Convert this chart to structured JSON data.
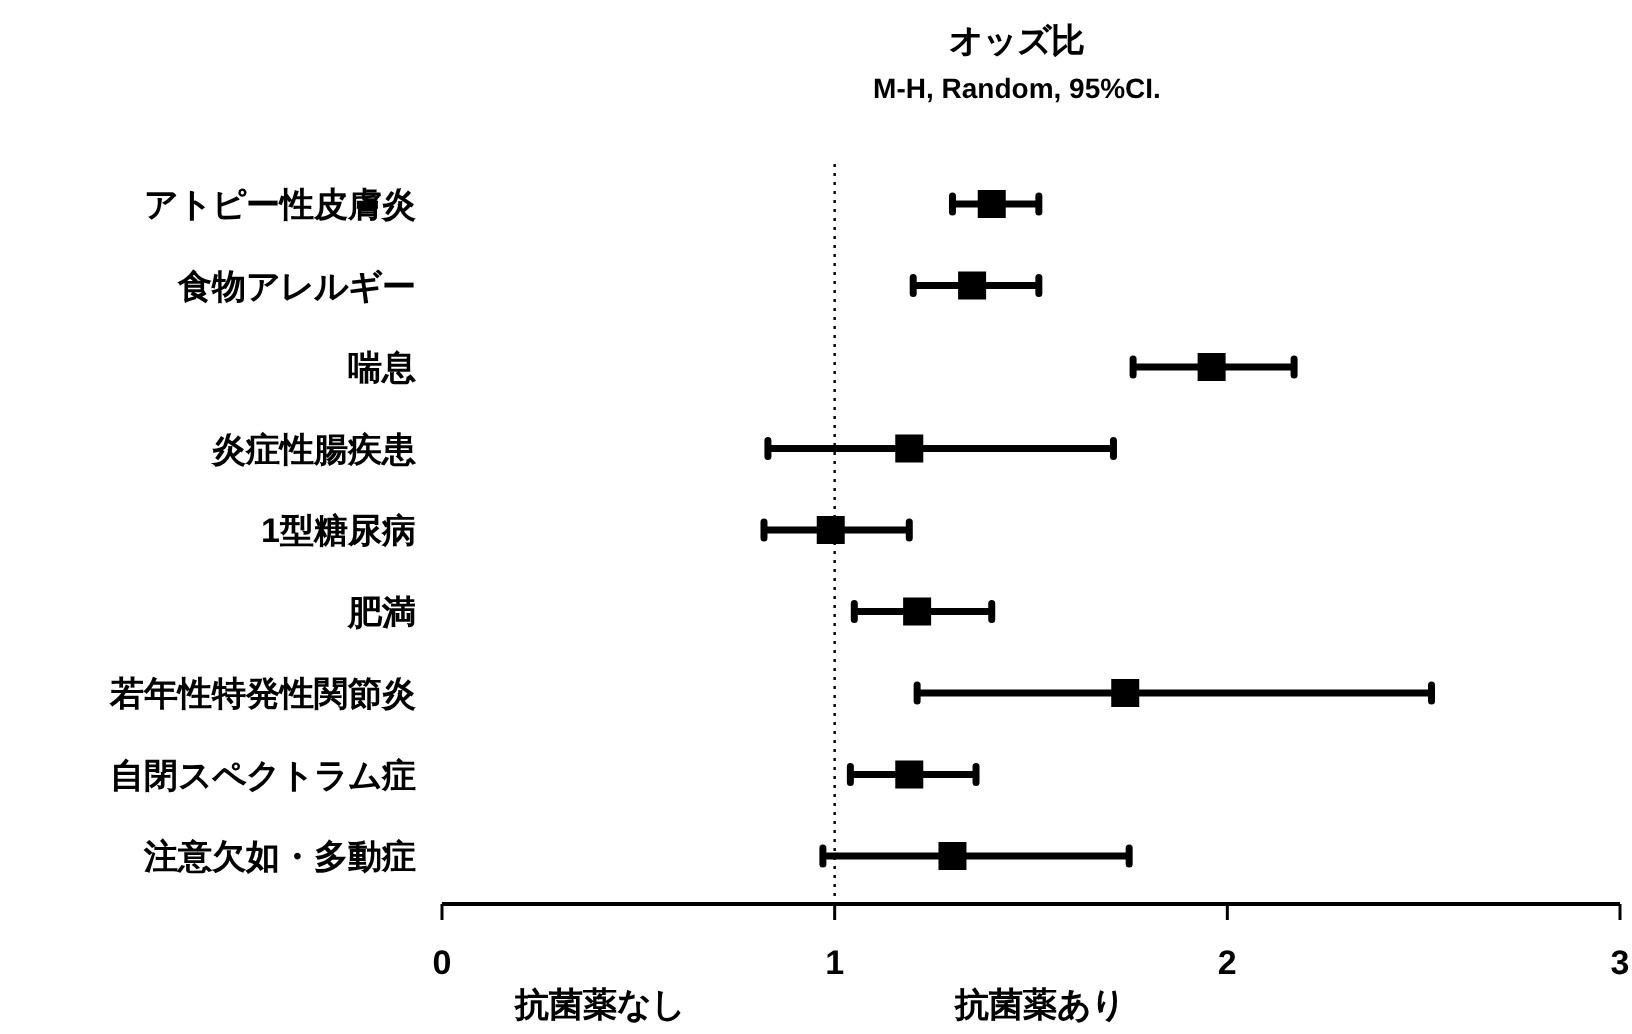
{
  "chart_data": {
    "type": "scatter",
    "orientation": "horizontal",
    "title": "オッズ比",
    "subtitle": "M-H, Random, 95%CI.",
    "categories": [
      "アトピー性皮膚炎",
      "食物アレルギー",
      "喘息",
      "炎症性腸疾患",
      "1型糖尿病",
      "肥満",
      "若年性特発性関節炎",
      "自閉スペクトラム症",
      "注意欠如・多動症"
    ],
    "color": "#000000",
    "marker": "square",
    "values": [
      1.4,
      1.35,
      1.96,
      1.19,
      0.99,
      1.21,
      1.74,
      1.19,
      1.3
    ],
    "errors": [
      [
        1.3,
        1.52
      ],
      [
        1.2,
        1.52
      ],
      [
        1.76,
        2.17
      ],
      [
        0.83,
        1.71
      ],
      [
        0.82,
        1.19
      ],
      [
        1.05,
        1.4
      ],
      [
        1.21,
        2.52
      ],
      [
        1.04,
        1.36
      ],
      [
        0.97,
        1.75
      ]
    ],
    "xlim": [
      0,
      3
    ],
    "xticks": [
      0,
      1,
      2,
      3
    ],
    "ref_lines": [
      {
        "axis": "x",
        "value": 1,
        "line_style": "dotted",
        "color": "#000000"
      }
    ],
    "annotations": [
      "抗菌薬なし",
      "抗菌薬あり"
    ],
    "grid": false
  }
}
